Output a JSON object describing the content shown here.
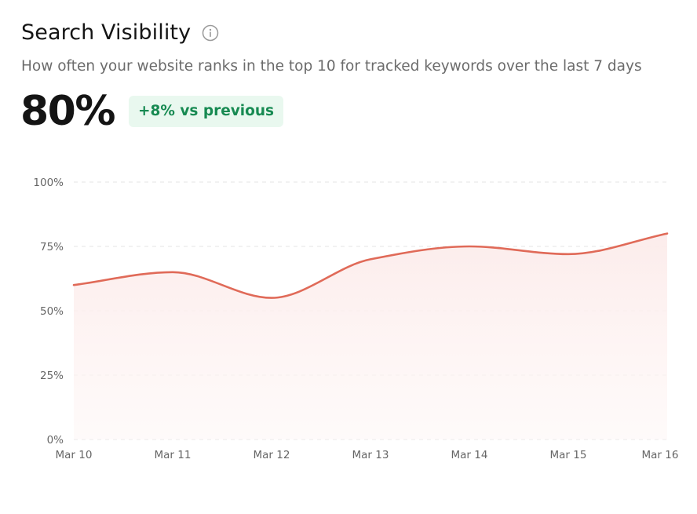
{
  "header": {
    "title": "Search Visibility",
    "subtitle": "How often your website ranks in the top 10 for tracked keywords over the last 7 days"
  },
  "metric": {
    "value": "80%",
    "delta": "+8% vs previous"
  },
  "colors": {
    "line": "#e06a58",
    "fill": "#fdeeee",
    "grid": "#e6e6e6",
    "badge_bg": "#e9f8ef",
    "badge_text": "#178a52",
    "axis_text": "#666666"
  },
  "chart_data": {
    "type": "area",
    "title": "",
    "xlabel": "",
    "ylabel": "",
    "categories": [
      "Mar 10",
      "Mar 11",
      "Mar 12",
      "Mar 13",
      "Mar 14",
      "Mar 15",
      "Mar 16"
    ],
    "series": [
      {
        "values": [
          60,
          65,
          55,
          70,
          75,
          72,
          80
        ]
      }
    ],
    "ylim": [
      0,
      100
    ],
    "y_ticks": [
      0,
      25,
      50,
      75,
      100
    ],
    "y_tick_labels": [
      "0%",
      "25%",
      "50%",
      "75%",
      "100%"
    ],
    "grid": true,
    "legend": "none"
  }
}
